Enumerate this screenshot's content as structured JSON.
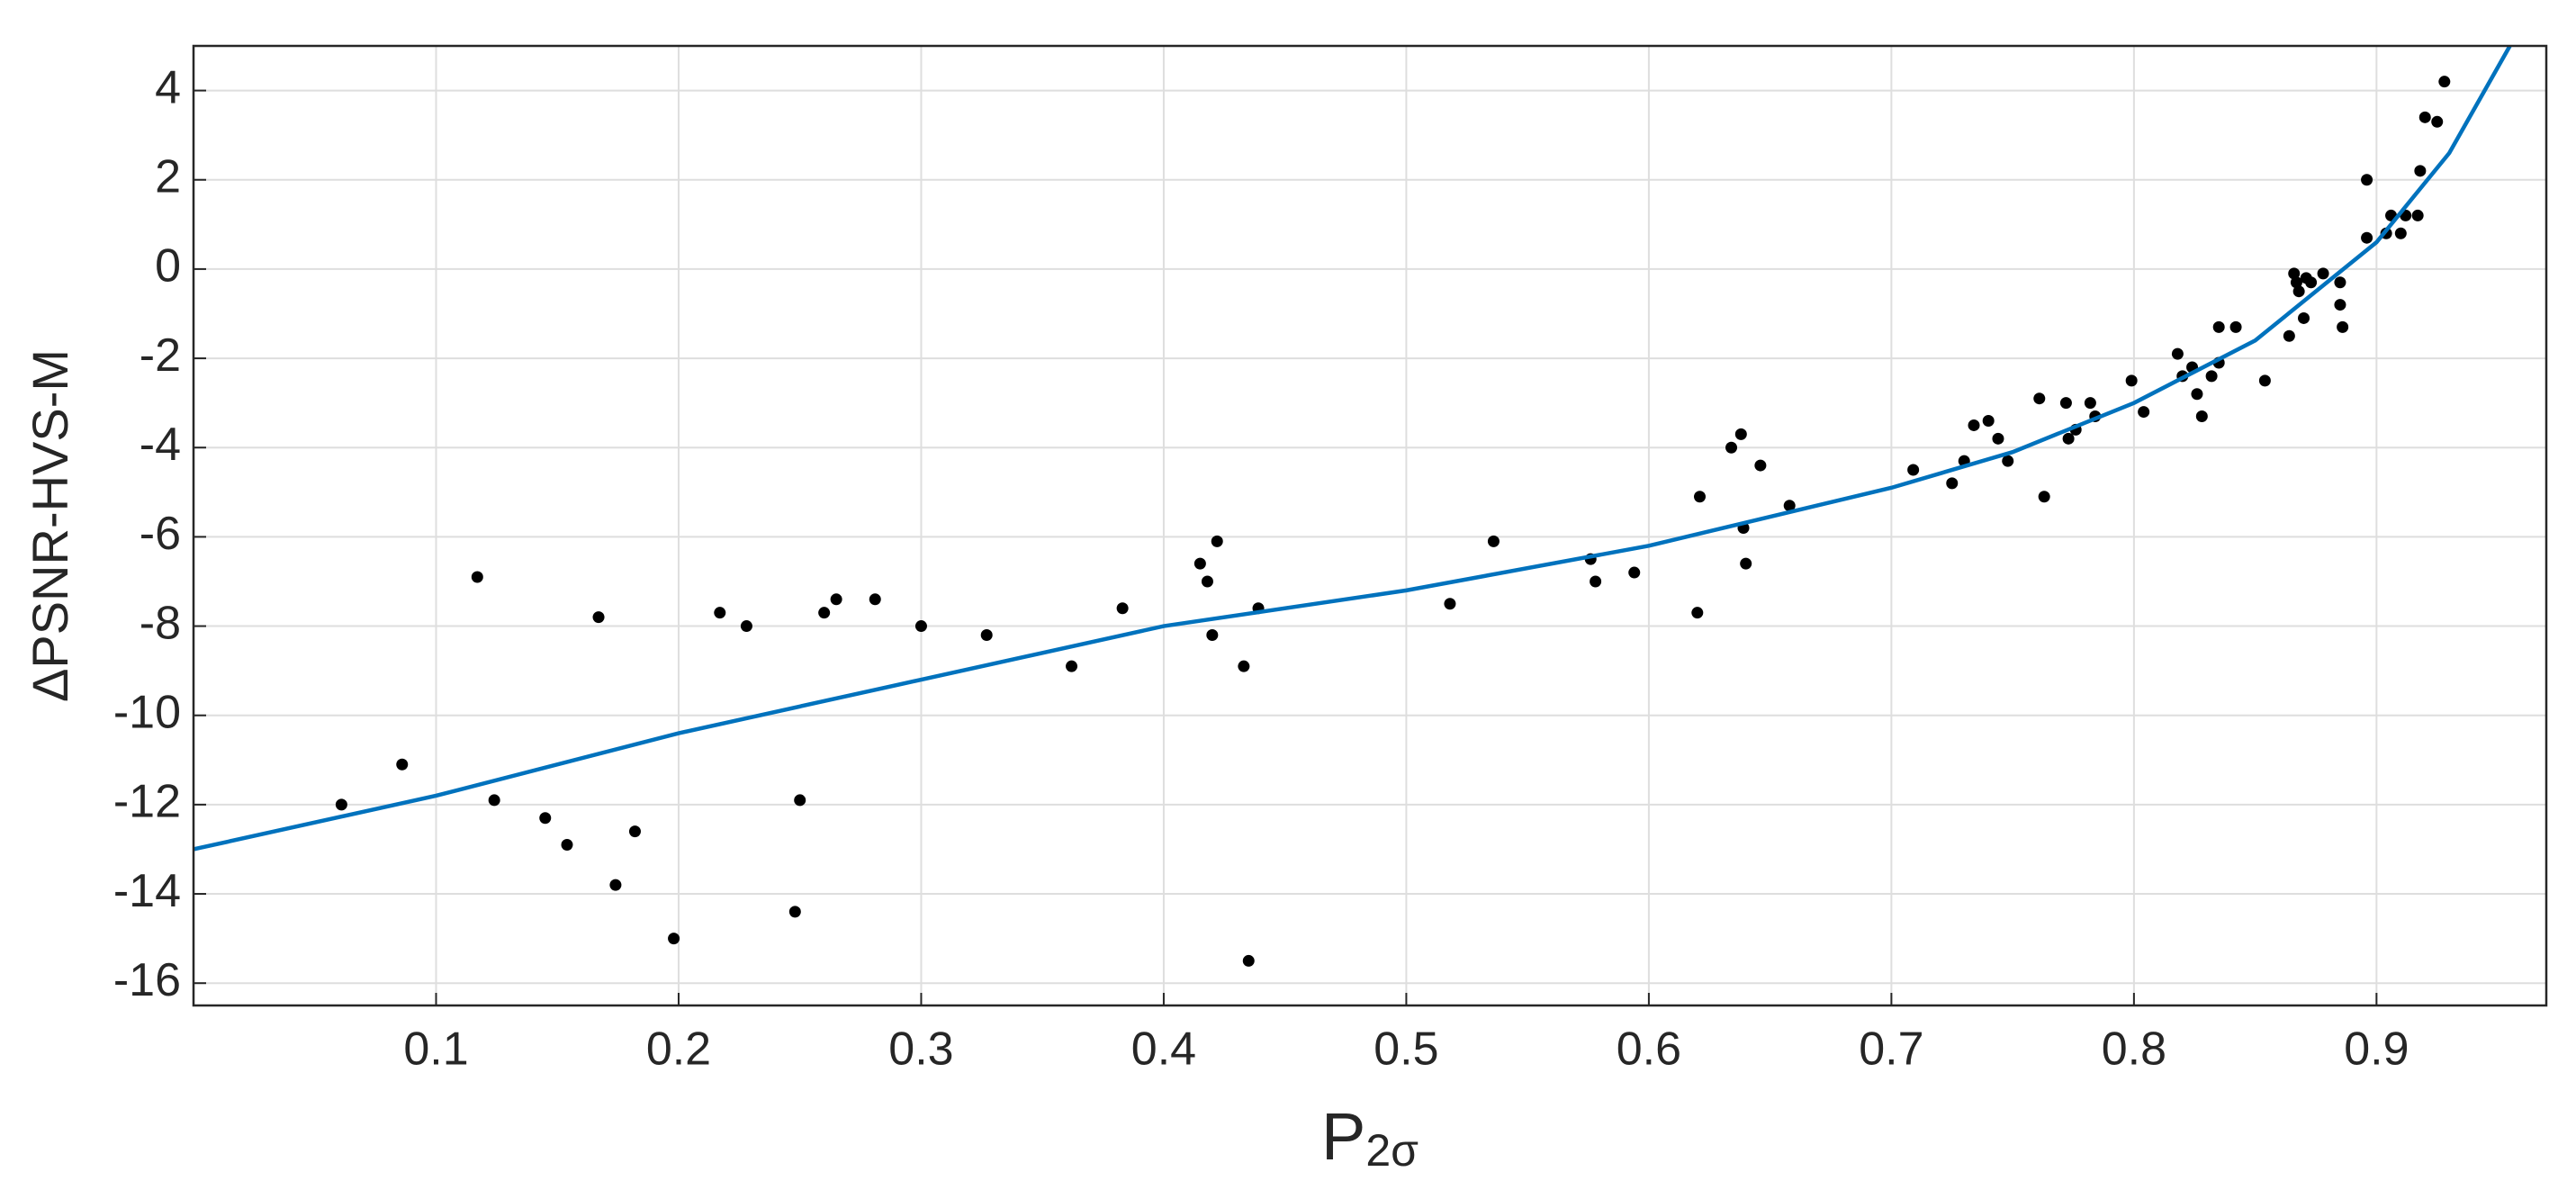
{
  "chart_data": {
    "type": "scatter",
    "ylabel": "ΔPSNR-HVS-M",
    "xlabel": {
      "main": "P",
      "sub": "2σ"
    },
    "xlim": [
      0,
      0.97
    ],
    "ylim": [
      -16.5,
      5
    ],
    "xticks": [
      0.1,
      0.2,
      0.3,
      0.4,
      0.5,
      0.6,
      0.7,
      0.8,
      0.9
    ],
    "yticks": [
      -16,
      -14,
      -12,
      -10,
      -8,
      -6,
      -4,
      -2,
      0,
      2,
      4
    ],
    "grid": true,
    "series": [
      {
        "kind": "points",
        "color": "#000000",
        "x": [
          0.061,
          0.086,
          0.117,
          0.124,
          0.145,
          0.154,
          0.167,
          0.174,
          0.182,
          0.198,
          0.217,
          0.228,
          0.248,
          0.25,
          0.26,
          0.265,
          0.281,
          0.3,
          0.327,
          0.362,
          0.383,
          0.415,
          0.418,
          0.422,
          0.42,
          0.433,
          0.435,
          0.439,
          0.518,
          0.536,
          0.576,
          0.578,
          0.594,
          0.621,
          0.62,
          0.634,
          0.638,
          0.639,
          0.64,
          0.646,
          0.658,
          0.709,
          0.725,
          0.73,
          0.734,
          0.74,
          0.744,
          0.748,
          0.761,
          0.763,
          0.772,
          0.773,
          0.776,
          0.782,
          0.784,
          0.799,
          0.804,
          0.818,
          0.82,
          0.824,
          0.826,
          0.828,
          0.832,
          0.835,
          0.835,
          0.842,
          0.854,
          0.864,
          0.866,
          0.867,
          0.868,
          0.87,
          0.871,
          0.873,
          0.878,
          0.885,
          0.885,
          0.886,
          0.896,
          0.896,
          0.904,
          0.906,
          0.91,
          0.912,
          0.917,
          0.918,
          0.92,
          0.925,
          0.928
        ],
        "values": [
          -12.0,
          -11.1,
          -6.9,
          -11.9,
          -12.3,
          -12.9,
          -7.8,
          -13.8,
          -12.6,
          -15.0,
          -7.7,
          -8.0,
          -14.4,
          -11.9,
          -7.7,
          -7.4,
          -7.4,
          -8.0,
          -8.2,
          -8.9,
          -7.6,
          -6.6,
          -7.0,
          -6.1,
          -8.2,
          -8.9,
          -15.5,
          -7.6,
          -7.5,
          -6.1,
          -6.5,
          -7.0,
          -6.8,
          -5.1,
          -7.7,
          -4.0,
          -3.7,
          -5.8,
          -6.6,
          -4.4,
          -5.3,
          -4.5,
          -4.8,
          -4.3,
          -3.5,
          -3.4,
          -3.8,
          -4.3,
          -2.9,
          -5.1,
          -3.0,
          -3.8,
          -3.6,
          -3.0,
          -3.3,
          -2.5,
          -3.2,
          -1.9,
          -2.4,
          -2.2,
          -2.8,
          -3.3,
          -2.4,
          -1.3,
          -2.1,
          -1.3,
          -2.5,
          -1.5,
          -0.1,
          -0.3,
          -0.5,
          -1.1,
          -0.2,
          -0.3,
          -0.1,
          -0.3,
          -0.8,
          -1.3,
          2.0,
          0.7,
          0.8,
          1.2,
          0.8,
          1.2,
          1.2,
          2.2,
          3.4,
          3.3,
          4.2
        ]
      },
      {
        "kind": "line",
        "color": "#0072bd",
        "x": [
          0.0,
          0.1,
          0.2,
          0.3,
          0.4,
          0.5,
          0.6,
          0.7,
          0.75,
          0.8,
          0.85,
          0.9,
          0.93,
          0.955
        ],
        "values": [
          -13.0,
          -11.8,
          -10.4,
          -9.2,
          -8.0,
          -7.2,
          -6.2,
          -4.9,
          -4.1,
          -3.0,
          -1.6,
          0.6,
          2.6,
          5.0
        ]
      }
    ]
  }
}
